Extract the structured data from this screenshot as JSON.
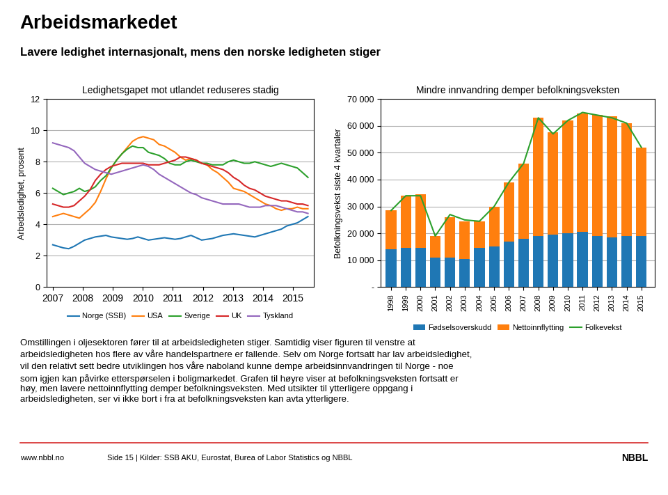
{
  "title": "Arbeidsmarkedet",
  "subtitle": "Lavere ledighet internasjonalt, mens den norske ledigheten stiger",
  "annotations": [
    "Omstillingen i oljesektoren fører til at arbeidsledigheten stiger. Samtidig viser figuren til venstre at\narbeidsledigheten hos flere av våre handelspartnere er fallende. Selv om Norge fortsatt har lav arbeidsledighet,\nvil den relativt sett bedre utviklingen hos våre naboland kunne dempe arbeidsinnvandringen til Norge - noe\nsom igjen kan påvirke etterspørselen i boligmarkedet. Grafen til høyre viser at befolkningsveksten fortsatt er\nhøy, men lavere nettoinnflytting demper befolkningsveksten. Med utsikter til ytterligere oppgang i\narbeidsledigheten, ser vi ikke bort i fra at befolkningsveksten kan avta ytterligere.",
    "www.nbbl.no",
    "Side 15 | Kilder: SSB AKU, Eurostat, Burea of Labor Statistics og NBBL",
    "NBBL"
  ],
  "chart_data": [
    {
      "type": "line",
      "title": "Ledighetsgapet mot utlandet reduseres stadig",
      "y_label": "Arbedsledighet, prosent",
      "x": [
        2007,
        2007.177083,
        2007.354167,
        2007.53125,
        2007.708333,
        2007.885417,
        2008.0625,
        2008.239583,
        2008.416667,
        2008.59375,
        2008.770833,
        2008.947917,
        2009.125,
        2009.302083,
        2009.479167,
        2009.65625,
        2009.833333,
        2010.010417,
        2010.1875,
        2010.364583,
        2010.541667,
        2010.71875,
        2010.895833,
        2011.072917,
        2011.25,
        2011.427083,
        2011.604167,
        2011.78125,
        2011.958333,
        2012.135417,
        2012.3125,
        2012.489583,
        2012.666667,
        2012.84375,
        2013.020833,
        2013.197917,
        2013.375,
        2013.552083,
        2013.729167,
        2013.90625,
        2014.083333,
        2014.260417,
        2014.4375,
        2014.614583,
        2014.791667,
        2014.96875,
        2015.145833,
        2015.322917,
        2015.5
      ],
      "xlim": [
        2006.8,
        2015.7
      ],
      "xticks": [
        2007,
        2008,
        2009,
        2010,
        2011,
        2012,
        2013,
        2014,
        2015
      ],
      "ylim": [
        0,
        12
      ],
      "yticks": [
        0,
        2,
        4,
        6,
        8,
        10,
        12
      ],
      "grid": "y",
      "legend": "upper center",
      "series": [
        {
          "name": "Norge (SSB)",
          "values": [
            2.7,
            2.6,
            2.5,
            2.45,
            2.6,
            2.8,
            3.0,
            3.1,
            3.2,
            3.25,
            3.3,
            3.2,
            3.15,
            3.1,
            3.05,
            3.1,
            3.2,
            3.1,
            3.0,
            3.05,
            3.1,
            3.15,
            3.1,
            3.05,
            3.1,
            3.2,
            3.3,
            3.15,
            3.0,
            3.05,
            3.1,
            3.2,
            3.3,
            3.35,
            3.4,
            3.35,
            3.3,
            3.25,
            3.2,
            3.3,
            3.4,
            3.5,
            3.6,
            3.7,
            3.9,
            4.0,
            4.1,
            4.3,
            4.5
          ]
        },
        {
          "name": "USA",
          "values": [
            4.5,
            4.6,
            4.7,
            4.6,
            4.5,
            4.4,
            4.7,
            5.0,
            5.4,
            6.1,
            6.9,
            7.6,
            8.1,
            8.5,
            8.9,
            9.3,
            9.5,
            9.6,
            9.5,
            9.4,
            9.1,
            9.0,
            8.8,
            8.6,
            8.3,
            8.1,
            8.2,
            8.1,
            7.9,
            7.8,
            7.5,
            7.3,
            7.0,
            6.7,
            6.3,
            6.2,
            6.1,
            5.9,
            5.7,
            5.5,
            5.3,
            5.2,
            5.0,
            4.9,
            5.0,
            5.0,
            5.1,
            5.0,
            5.0
          ]
        },
        {
          "name": "Sverige",
          "values": [
            6.3,
            6.1,
            5.9,
            6.0,
            6.1,
            6.3,
            6.1,
            6.2,
            6.4,
            6.8,
            7.1,
            7.6,
            8.1,
            8.5,
            8.8,
            9.0,
            8.9,
            8.9,
            8.6,
            8.5,
            8.4,
            8.2,
            7.9,
            7.8,
            7.8,
            8.0,
            8.1,
            8.0,
            7.9,
            7.9,
            7.8,
            7.8,
            7.8,
            8.0,
            8.1,
            8.0,
            7.9,
            7.9,
            8.0,
            7.9,
            7.8,
            7.7,
            7.8,
            7.9,
            7.8,
            7.7,
            7.6,
            7.3,
            7.0
          ]
        },
        {
          "name": "UK",
          "values": [
            5.3,
            5.2,
            5.1,
            5.1,
            5.2,
            5.5,
            5.8,
            6.2,
            6.8,
            7.2,
            7.5,
            7.7,
            7.8,
            7.9,
            7.9,
            7.9,
            7.9,
            7.9,
            7.8,
            7.8,
            7.8,
            7.9,
            8.0,
            8.1,
            8.3,
            8.3,
            8.2,
            8.1,
            7.9,
            7.8,
            7.7,
            7.6,
            7.5,
            7.3,
            7.0,
            6.8,
            6.5,
            6.3,
            6.2,
            6.0,
            5.8,
            5.7,
            5.6,
            5.5,
            5.5,
            5.4,
            5.3,
            5.3,
            5.2
          ]
        },
        {
          "name": "Tyskland",
          "values": [
            9.2,
            9.1,
            9.0,
            8.9,
            8.7,
            8.3,
            7.9,
            7.7,
            7.5,
            7.4,
            7.3,
            7.2,
            7.3,
            7.4,
            7.5,
            7.6,
            7.7,
            7.8,
            7.7,
            7.5,
            7.2,
            7.0,
            6.8,
            6.6,
            6.4,
            6.2,
            6.0,
            5.9,
            5.7,
            5.6,
            5.5,
            5.4,
            5.3,
            5.3,
            5.3,
            5.3,
            5.2,
            5.1,
            5.1,
            5.1,
            5.2,
            5.2,
            5.2,
            5.1,
            5.0,
            4.9,
            4.8,
            4.8,
            4.7
          ]
        }
      ]
    },
    {
      "type": "bar",
      "stacked": true,
      "title": "Mindre innvandring demper befolkningsveksten",
      "y_label": "Befolkningsvekst siste 4 kvartaler",
      "x": [
        1998,
        1999,
        2000,
        2001,
        2002,
        2003,
        2004,
        2005,
        2006,
        2007,
        2008,
        2009,
        2010,
        2011,
        2012,
        2013,
        2014,
        2015
      ],
      "xlim": [
        1997.3,
        2015.9
      ],
      "xticks": [
        1998,
        1999,
        2000,
        2001,
        2002,
        2003,
        2004,
        2005,
        2006,
        2007,
        2008,
        2009,
        2010,
        2011,
        2012,
        2013,
        2014,
        2015
      ],
      "ylim": [
        0,
        70000
      ],
      "yticks": [
        {
          "value": 0,
          "label": "-"
        },
        {
          "value": 10000,
          "label": "10 000"
        },
        {
          "value": 20000,
          "label": "20 000"
        },
        {
          "value": 30000,
          "label": "30 000"
        },
        {
          "value": 40000,
          "label": "40 000"
        },
        {
          "value": 50000,
          "label": "50 000"
        },
        {
          "value": 60000,
          "label": "60 000"
        },
        {
          "value": 70000,
          "label": "70 000"
        }
      ],
      "grid": "y",
      "legend": "upper center",
      "series": [
        {
          "name": "Fødselsoverskudd",
          "type": "bar",
          "values": [
            14000,
            14500,
            14500,
            11000,
            11000,
            10500,
            14500,
            15000,
            17000,
            18000,
            19000,
            19500,
            20000,
            20500,
            19000,
            18500,
            19000,
            19000
          ]
        },
        {
          "name": "Nettoinnflytting",
          "type": "bar",
          "values": [
            14500,
            19500,
            20000,
            8000,
            15000,
            14000,
            10000,
            15000,
            22000,
            28000,
            44000,
            38000,
            42000,
            44000,
            45000,
            45000,
            42000,
            33000
          ]
        },
        {
          "name": "Folkevekst",
          "type": "line",
          "values": [
            28500,
            34000,
            34000,
            19000,
            27000,
            25000,
            24500,
            30000,
            39000,
            46000,
            63000,
            57000,
            62000,
            65000,
            64000,
            63000,
            61000,
            52000
          ]
        }
      ]
    }
  ]
}
